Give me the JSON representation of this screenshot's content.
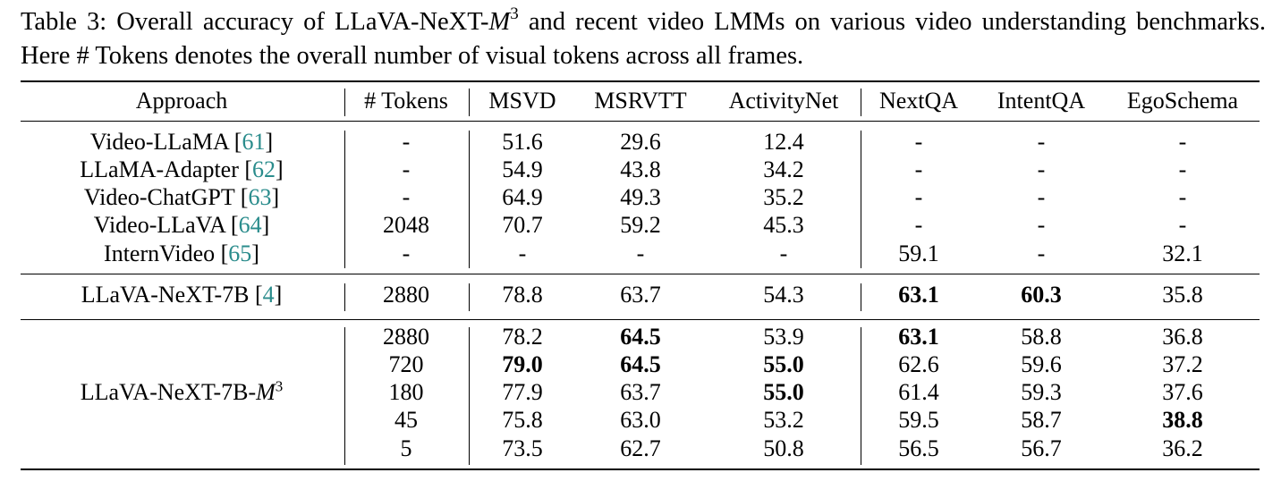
{
  "caption": {
    "prefix": "Table 3: Overall accuracy of LLaVA-NeXT-",
    "m_letter": "M",
    "m_exp": "3",
    "suffix": " and recent video LMMs on various video understanding benchmarks. Here  # Tokens denotes the overall number of visual tokens across all frames."
  },
  "headers": [
    "Approach",
    "# Tokens",
    "MSVD",
    "MSRVTT",
    "ActivityNet",
    "NextQA",
    "IntentQA",
    "EgoSchema"
  ],
  "group1": [
    {
      "name": "Video-LLaMA",
      "ref": "61",
      "values": [
        "-",
        "51.6",
        "29.6",
        "12.4",
        "-",
        "-",
        "-"
      ]
    },
    {
      "name": "LLaMA-Adapter",
      "ref": "62",
      "values": [
        "-",
        "54.9",
        "43.8",
        "34.2",
        "-",
        "-",
        "-"
      ]
    },
    {
      "name": "Video-ChatGPT",
      "ref": "63",
      "values": [
        "-",
        "64.9",
        "49.3",
        "35.2",
        "-",
        "-",
        "-"
      ]
    },
    {
      "name": "Video-LLaVA",
      "ref": "64",
      "values": [
        "2048",
        "70.7",
        "59.2",
        "45.3",
        "-",
        "-",
        "-"
      ]
    },
    {
      "name": "InternVideo",
      "ref": "65",
      "values": [
        "-",
        "-",
        "-",
        "-",
        "59.1",
        "-",
        "32.1"
      ]
    }
  ],
  "group2": [
    {
      "name": "LLaVA-NeXT-7B",
      "ref": "4",
      "values": [
        "2880",
        "78.8",
        "63.7",
        "54.3",
        "63.1",
        "60.3",
        "35.8"
      ],
      "bold": [
        false,
        false,
        false,
        false,
        true,
        true,
        false
      ]
    }
  ],
  "group3": {
    "name": "LLaVA-NeXT-7B-",
    "m_letter": "M",
    "m_exp": "3",
    "rows": [
      {
        "values": [
          "2880",
          "78.2",
          "64.5",
          "53.9",
          "63.1",
          "58.8",
          "36.8"
        ],
        "bold": [
          false,
          false,
          true,
          false,
          true,
          false,
          false
        ]
      },
      {
        "values": [
          "720",
          "79.0",
          "64.5",
          "55.0",
          "62.6",
          "59.6",
          "37.2"
        ],
        "bold": [
          false,
          true,
          true,
          true,
          false,
          false,
          false
        ]
      },
      {
        "values": [
          "180",
          "77.9",
          "63.7",
          "55.0",
          "61.4",
          "59.3",
          "37.6"
        ],
        "bold": [
          false,
          false,
          false,
          true,
          false,
          false,
          false
        ]
      },
      {
        "values": [
          "45",
          "75.8",
          "63.0",
          "53.2",
          "59.5",
          "58.7",
          "38.8"
        ],
        "bold": [
          false,
          false,
          false,
          false,
          false,
          false,
          true
        ]
      },
      {
        "values": [
          "5",
          "73.5",
          "62.7",
          "50.8",
          "56.5",
          "56.7",
          "36.2"
        ],
        "bold": [
          false,
          false,
          false,
          false,
          false,
          false,
          false
        ]
      }
    ]
  }
}
